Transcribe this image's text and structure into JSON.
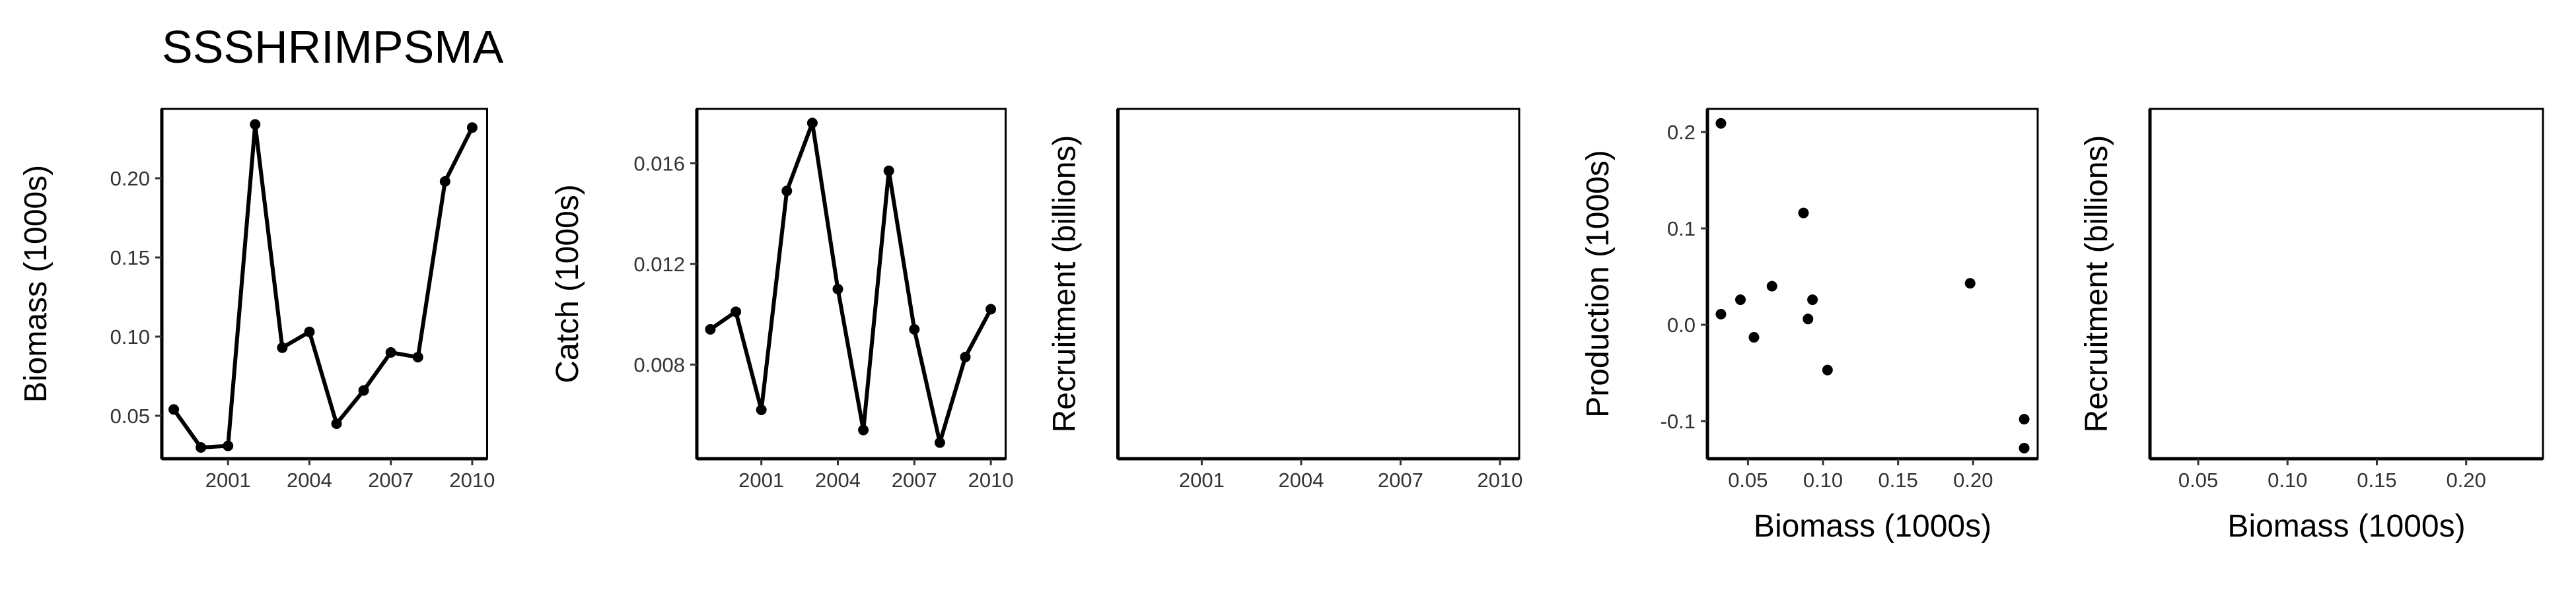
{
  "chart_data": [
    {
      "type": "line",
      "title": "SSSHRIMPSMA",
      "y_label": "Biomass (1000s)",
      "x": [
        1999,
        2000,
        2001,
        2002,
        2003,
        2004,
        2005,
        2006,
        2007,
        2008,
        2009,
        2010
      ],
      "values": [
        0.054,
        0.03,
        0.031,
        0.234,
        0.093,
        0.103,
        0.045,
        0.066,
        0.09,
        0.087,
        0.198,
        0.232
      ],
      "color": "#000000",
      "xlim": [
        1998.56,
        2010.55
      ],
      "xticks": [
        2001,
        2004,
        2007,
        2010
      ],
      "ylim": [
        0.0229,
        0.2438
      ],
      "yticks": [
        0.05,
        {
          "value": 0.1,
          "label": "0.10"
        },
        0.15,
        {
          "value": 0.2,
          "label": "0.20"
        }
      ]
    },
    {
      "type": "line",
      "y_label": "Catch (1000s)",
      "x": [
        1999,
        2000,
        2001,
        2002,
        2003,
        2004,
        2005,
        2006,
        2007,
        2008,
        2009,
        2010
      ],
      "values": [
        0.0094,
        0.0101,
        0.0062,
        0.0149,
        0.0176,
        0.011,
        0.0054,
        0.0157,
        0.0094,
        0.0049,
        0.0083,
        0.0102
      ],
      "color": "#000000",
      "xlim": [
        1998.47,
        2010.58
      ],
      "xticks": [
        2001,
        2004,
        2007,
        2010
      ],
      "ylim": [
        0.00426,
        0.01816
      ],
      "yticks": [
        0.008,
        0.012,
        0.016
      ]
    },
    {
      "type": "line",
      "y_label": "Recruitment (billions)",
      "xlim": [
        1998.47,
        2010.58
      ],
      "xticks": [
        2001,
        2004,
        2007,
        2010
      ]
    },
    {
      "type": "scatter",
      "y_label": "Production (1000s)",
      "x_label": "Biomass (1000s)",
      "x": [
        0.032,
        0.032,
        0.045,
        0.054,
        0.066,
        0.087,
        0.09,
        0.093,
        0.103,
        0.198,
        0.234,
        0.234
      ],
      "values": [
        0.209,
        0.011,
        0.026,
        -0.013,
        0.04,
        0.116,
        0.006,
        0.026,
        -0.047,
        0.043,
        -0.098,
        -0.128
      ],
      "color": "#000000",
      "xlim": [
        0.023,
        0.243
      ],
      "xticks": [
        0.05,
        {
          "value": 0.1,
          "label": "0.10"
        },
        0.15,
        {
          "value": 0.2,
          "label": "0.20"
        }
      ],
      "ylim": [
        -0.139,
        0.224
      ],
      "yticks": [
        {
          "value": -0.1,
          "label": "-0.1"
        },
        {
          "value": 0,
          "label": "0.0"
        },
        0.1,
        0.2
      ]
    },
    {
      "type": "scatter",
      "y_label": "Recruitment (billions)",
      "x_label": "Biomass (1000s)",
      "xlim": [
        0.023,
        0.243
      ],
      "xticks": [
        0.05,
        {
          "value": 0.1,
          "label": "0.10"
        },
        0.15,
        {
          "value": 0.2,
          "label": "0.20"
        }
      ]
    }
  ]
}
